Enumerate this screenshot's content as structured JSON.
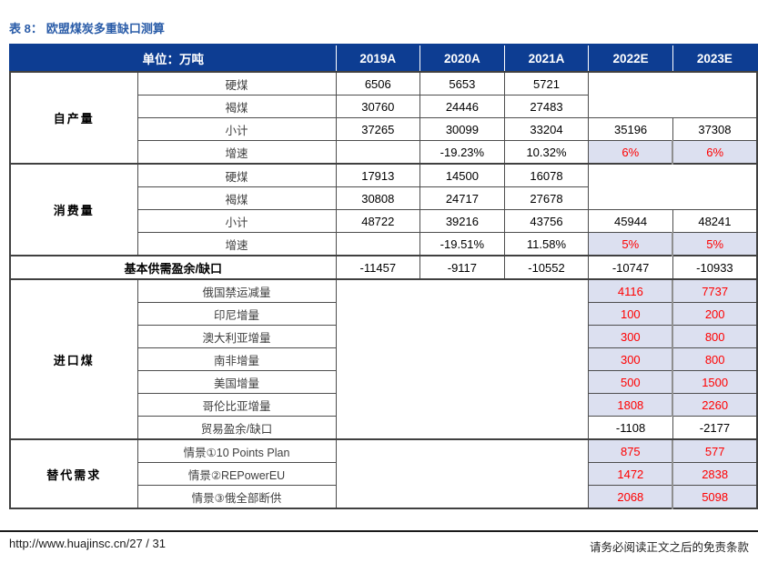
{
  "title": {
    "prefix": "表 8：",
    "text": "欧盟煤炭多重缺口测算"
  },
  "colors": {
    "header_bg": "#0D3D92",
    "title_blue": "#2A5CA8",
    "highlight_bg": "#DCE0F0",
    "value_red": "#FF0000",
    "grid_line": "#4d4d4d"
  },
  "table": {
    "unit_header": "单位：万吨",
    "years": [
      "2019A",
      "2020A",
      "2021A",
      "2022E",
      "2023E"
    ],
    "self_production": {
      "label": "自产量",
      "hard_coal": {
        "label": "硬煤",
        "y2019": "6506",
        "y2020": "5653",
        "y2021": "5721"
      },
      "lignite": {
        "label": "褐煤",
        "y2019": "30760",
        "y2020": "24446",
        "y2021": "27483"
      },
      "subtotal": {
        "label": "小计",
        "y2019": "37265",
        "y2020": "30099",
        "y2021": "33204",
        "y2022": "35196",
        "y2023": "37308"
      },
      "growth": {
        "label": "增速",
        "y2019": "",
        "y2020": "-19.23%",
        "y2021": "10.32%",
        "y2022": "6%",
        "y2023": "6%"
      }
    },
    "consumption": {
      "label": "消费量",
      "hard_coal": {
        "label": "硬煤",
        "y2019": "17913",
        "y2020": "14500",
        "y2021": "16078"
      },
      "lignite": {
        "label": "褐煤",
        "y2019": "30808",
        "y2020": "24717",
        "y2021": "27678"
      },
      "subtotal": {
        "label": "小计",
        "y2019": "48722",
        "y2020": "39216",
        "y2021": "43756",
        "y2022": "45944",
        "y2023": "48241"
      },
      "growth": {
        "label": "增速",
        "y2019": "",
        "y2020": "-19.51%",
        "y2021": "11.58%",
        "y2022": "5%",
        "y2023": "5%"
      }
    },
    "balance": {
      "label": "基本供需盈余/缺口",
      "y2019": "-11457",
      "y2020": "-9117",
      "y2021": "-10552",
      "y2022": "-10747",
      "y2023": "-10933"
    },
    "imports": {
      "label": "进口煤",
      "russia_embargo": {
        "label": "俄国禁运减量",
        "y2022": "4116",
        "y2023": "7737"
      },
      "indonesia": {
        "label": "印尼增量",
        "y2022": "100",
        "y2023": "200"
      },
      "australia": {
        "label": "澳大利亚增量",
        "y2022": "300",
        "y2023": "800"
      },
      "south_africa": {
        "label": "南非增量",
        "y2022": "300",
        "y2023": "800"
      },
      "usa": {
        "label": "美国增量",
        "y2022": "500",
        "y2023": "1500"
      },
      "colombia": {
        "label": "哥伦比亚增量",
        "y2022": "1808",
        "y2023": "2260"
      },
      "trade_balance": {
        "label": "贸易盈余/缺口",
        "y2022": "-1108",
        "y2023": "-2177"
      }
    },
    "substitution": {
      "label": "替代需求",
      "scenario1": {
        "label": "情景①10 Points Plan",
        "y2022": "875",
        "y2023": "577"
      },
      "scenario2": {
        "label": "情景②REPowerEU",
        "y2022": "1472",
        "y2023": "2838"
      },
      "scenario3": {
        "label": "情景③俄全部断供",
        "y2022": "2068",
        "y2023": "5098"
      }
    }
  },
  "footer": {
    "url": "http://www.huajinsc.cn/",
    "page_indicator": "27 / 31",
    "disclaimer": "请务必阅读正文之后的免责条款"
  }
}
